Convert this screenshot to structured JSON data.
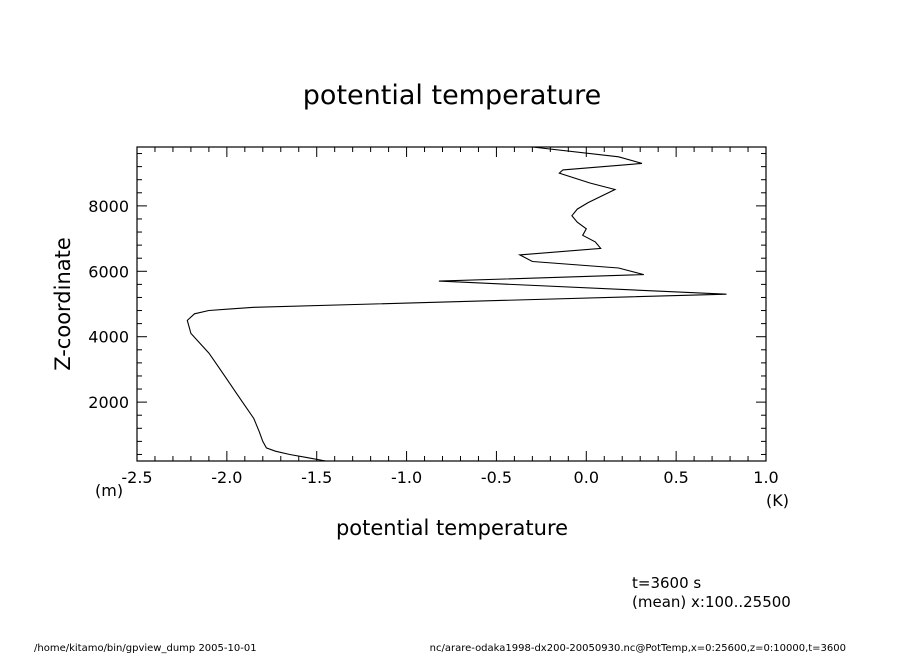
{
  "chart_data": {
    "type": "line",
    "title": "potential temperature",
    "xlabel": "potential temperature",
    "ylabel": "Z-coordinate",
    "x_unit": "(K)",
    "y_unit": "(m)",
    "xlim": [
      -2.5,
      1.0
    ],
    "ylim": [
      200,
      9800
    ],
    "x_ticks": [
      -2.5,
      -2.0,
      -1.5,
      -1.0,
      -0.5,
      0.0,
      0.5,
      1.0
    ],
    "x_tick_labels": [
      "-2.5",
      "-2.0",
      "-1.5",
      "-1.0",
      "-0.5",
      "0.0",
      "0.5",
      "1.0"
    ],
    "y_ticks": [
      2000,
      4000,
      6000,
      8000
    ],
    "y_tick_labels": [
      "2000",
      "4000",
      "6000",
      "8000"
    ],
    "grid": false,
    "series": [
      {
        "x": [
          -1.45,
          -1.55,
          -1.65,
          -1.73,
          -1.78,
          -1.8,
          -1.82,
          -1.85,
          -1.9,
          -1.95,
          -2.0,
          -2.05,
          -2.1,
          -2.15,
          -2.2,
          -2.22,
          -2.18,
          -2.1,
          -1.98,
          -1.85,
          0.78,
          -0.82,
          0.32,
          0.18,
          -0.3,
          -0.37,
          0.08,
          0.05,
          -0.02,
          0.0,
          -0.05,
          -0.08,
          -0.05,
          0.01,
          0.16,
          0.02,
          -0.15,
          -0.13,
          0.31,
          0.18,
          -0.3
        ],
        "y": [
          200,
          300,
          400,
          500,
          600,
          800,
          1100,
          1500,
          1900,
          2300,
          2700,
          3100,
          3500,
          3800,
          4100,
          4500,
          4700,
          4800,
          4850,
          4900,
          5300,
          5700,
          5900,
          6100,
          6300,
          6500,
          6700,
          6900,
          7100,
          7300,
          7500,
          7700,
          7900,
          8100,
          8500,
          8700,
          9000,
          9100,
          9300,
          9500,
          9800
        ]
      }
    ]
  },
  "annotations": {
    "time": "t=3600 s",
    "mean": "(mean) x:100..25500",
    "footer_left": "/home/kitamo/bin/gpview_dump  2005-10-01",
    "footer_right": "nc/arare-odaka1998-dx200-20050930.nc@PotTemp,x=0:25600,z=0:10000,t=3600"
  }
}
